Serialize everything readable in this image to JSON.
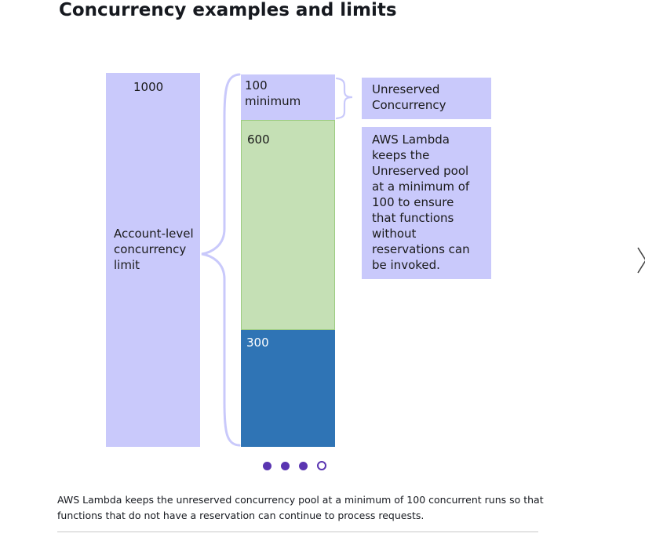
{
  "title": "Concurrency examples and limits",
  "diagram": {
    "account_box": {
      "value": "1000",
      "label": "Account-level\nconcurrency\nlimit"
    },
    "segments": [
      {
        "text": "100\nminimum",
        "value": 100,
        "color": "#c9c9fb"
      },
      {
        "text": "600",
        "value": 600,
        "color": "#c5e0b5"
      },
      {
        "text": "300",
        "value": 300,
        "color": "#2f74b5"
      }
    ],
    "callouts": {
      "unreserved": "Unreserved\nConcurrency",
      "note": "AWS Lambda keeps the Unreserved pool at a minimum of 100 to ensure that functions without reservations can be invoked."
    },
    "colors": {
      "brace": "#c9c9fb",
      "lavender": "#c9c9fb",
      "green": "#c5e0b5",
      "blue": "#2f74b5"
    }
  },
  "carousel": {
    "dot_count": 4,
    "active_index": 3,
    "dot_color": "#5a35b1",
    "next_icon": "chevron-right-icon"
  },
  "caption": "AWS Lambda keeps the unreserved concurrency pool at a minimum of 100 concurrent runs so that functions that do not have a reservation can continue to process requests."
}
